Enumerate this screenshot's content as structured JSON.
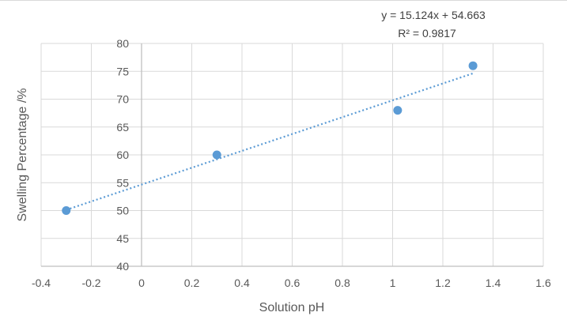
{
  "chart_data": {
    "type": "scatter",
    "title": "",
    "xlabel": "Solution pH",
    "ylabel": "Swelling Percentage /%",
    "xlim": [
      -0.4,
      1.6
    ],
    "ylim": [
      40,
      80
    ],
    "xticks": [
      -0.4,
      -0.2,
      0,
      0.2,
      0.4,
      0.6,
      0.8,
      1,
      1.2,
      1.4,
      1.6
    ],
    "yticks": [
      40,
      45,
      50,
      55,
      60,
      65,
      70,
      75,
      80
    ],
    "xtick_labels": [
      "-0.4",
      "-0.2",
      "0",
      "0.2",
      "0.4",
      "0.6",
      "0.8",
      "1",
      "1.2",
      "1.4",
      "1.6"
    ],
    "ytick_labels": [
      "40",
      "45",
      "50",
      "55",
      "60",
      "65",
      "70",
      "75",
      "80"
    ],
    "grid": true,
    "series": [
      {
        "x": [
          -0.3,
          0.3,
          1.02,
          1.32
        ],
        "y": [
          50,
          60,
          68,
          76
        ],
        "color": "#5b9bd5"
      }
    ],
    "trendline": {
      "type": "linear",
      "slope": 15.124,
      "intercept": 54.663,
      "x_range": [
        -0.3,
        1.32
      ],
      "color": "#5b9bd5",
      "style": "dotted"
    },
    "annotations": {
      "equation": "y = 15.124x + 54.663",
      "r_squared": "R² = 0.9817"
    }
  }
}
